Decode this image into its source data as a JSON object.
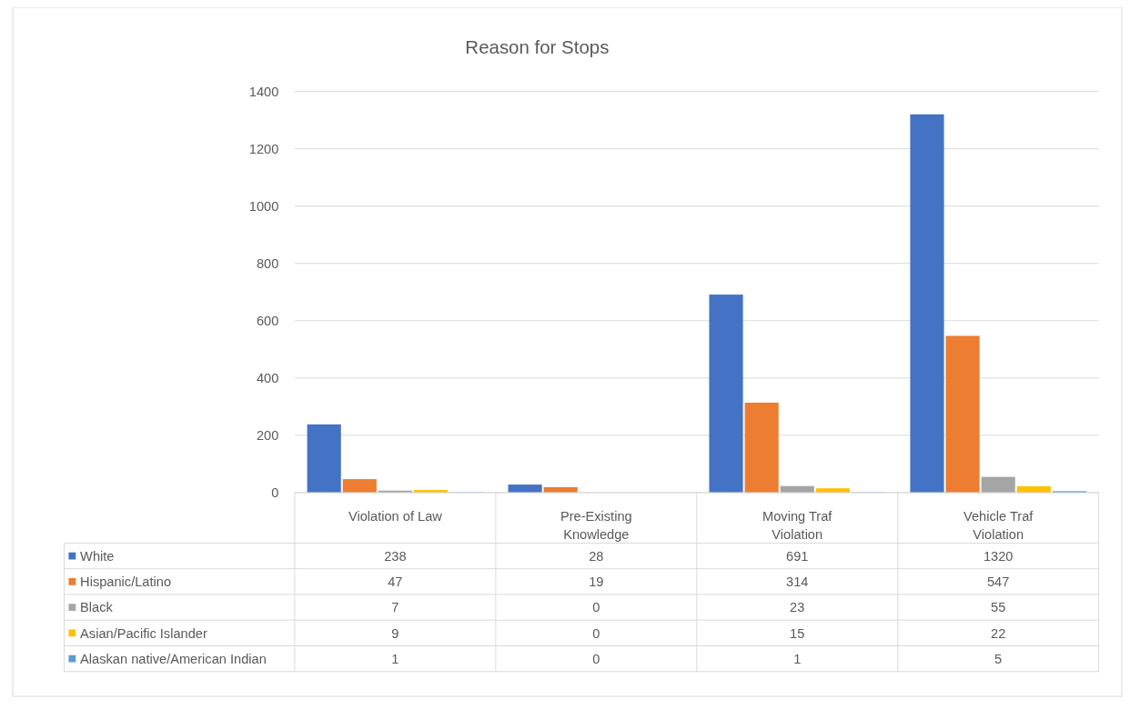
{
  "chart_data": {
    "type": "bar",
    "title": "Reason for Stops",
    "categories": [
      "Violation of Law",
      "Pre-Existing Knowledge",
      "Moving Traf Violation",
      "Vehicle Traf Violation"
    ],
    "series": [
      {
        "name": "White",
        "color": "#4472c4",
        "values": [
          238,
          28,
          691,
          1320
        ]
      },
      {
        "name": "Hispanic/Latino",
        "color": "#ed7d31",
        "values": [
          47,
          19,
          314,
          547
        ]
      },
      {
        "name": "Black",
        "color": "#a5a5a5",
        "values": [
          7,
          0,
          23,
          55
        ]
      },
      {
        "name": "Asian/Pacific Islander",
        "color": "#ffc000",
        "values": [
          9,
          0,
          15,
          22
        ]
      },
      {
        "name": "Alaskan native/American Indian",
        "color": "#5b9bd5",
        "values": [
          1,
          0,
          1,
          5
        ]
      }
    ],
    "ylim": [
      0,
      1400
    ],
    "yticks": [
      0,
      200,
      400,
      600,
      800,
      1000,
      1200,
      1400
    ],
    "grid": "y",
    "legend": "bottom",
    "data_labels": true
  }
}
